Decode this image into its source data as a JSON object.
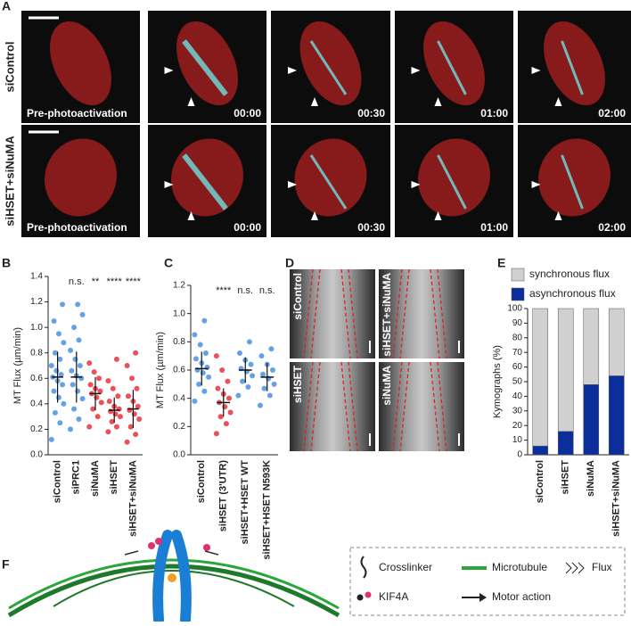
{
  "panel_A": {
    "letter": "A",
    "rows": [
      {
        "label": "siControl",
        "frames": [
          "Pre-photoactivation",
          "00:00",
          "00:30",
          "01:00",
          "02:00"
        ]
      },
      {
        "label": "siHSET+siNuMA",
        "frames": [
          "Pre-photoactivation",
          "00:00",
          "00:30",
          "01:00",
          "02:00"
        ]
      }
    ]
  },
  "chart_data": [
    {
      "type": "strip",
      "letter": "B",
      "ylabel": "MT Flux (µm/min)",
      "categories": [
        "siControl",
        "siPRC1",
        "siNuMA",
        "siHSET",
        "siHSET+siNuMA"
      ],
      "colors": [
        "#4a90e2",
        "#4a90e2",
        "#e8323c",
        "#e8323c",
        "#e8323c"
      ],
      "annotations": [
        null,
        "n.s.",
        "**",
        "****",
        "****"
      ],
      "points": [
        [
          0.12,
          0.25,
          0.33,
          0.4,
          0.45,
          0.5,
          0.55,
          0.58,
          0.61,
          0.63,
          0.66,
          0.7,
          0.75,
          0.8,
          0.88,
          0.95,
          1.05,
          1.18
        ],
        [
          0.2,
          0.28,
          0.36,
          0.44,
          0.5,
          0.55,
          0.6,
          0.62,
          0.66,
          0.7,
          0.75,
          0.82,
          0.9,
          1.0,
          1.1,
          1.18
        ],
        [
          0.22,
          0.3,
          0.36,
          0.41,
          0.45,
          0.48,
          0.5,
          0.52,
          0.55,
          0.6,
          0.65,
          0.72
        ],
        [
          0.18,
          0.22,
          0.26,
          0.3,
          0.32,
          0.34,
          0.36,
          0.38,
          0.42,
          0.46,
          0.52,
          0.58,
          0.75
        ],
        [
          0.1,
          0.16,
          0.22,
          0.28,
          0.32,
          0.35,
          0.38,
          0.42,
          0.46,
          0.52,
          0.6,
          0.7,
          0.8
        ]
      ],
      "means": [
        0.61,
        0.61,
        0.48,
        0.35,
        0.36
      ],
      "sds": [
        0.2,
        0.2,
        0.13,
        0.1,
        0.15
      ],
      "ylim": [
        0,
        1.4
      ],
      "yticks": [
        {
          "value": 0,
          "label": "0.0"
        },
        0.2,
        0.4,
        0.6,
        0.8,
        {
          "value": 1,
          "label": "1.0"
        },
        1.2,
        1.4
      ]
    },
    {
      "type": "strip",
      "letter": "C",
      "ylabel": "MT Flux (µm/min)",
      "categories": [
        "siControl",
        "siHSET (3'UTR)",
        "siHSET+HSET WT",
        "siHSET+HSET N593K"
      ],
      "colors": [
        "#4a90e2",
        "#e8323c",
        "#4a90e2",
        "#4a90e2"
      ],
      "annotations": [
        null,
        "****",
        "n.s.",
        "n.s."
      ],
      "points": [
        [
          0.38,
          0.45,
          0.5,
          0.55,
          0.58,
          0.6,
          0.62,
          0.65,
          0.68,
          0.72,
          0.78,
          0.85,
          0.95
        ],
        [
          0.15,
          0.22,
          0.27,
          0.3,
          0.34,
          0.37,
          0.4,
          0.43,
          0.47,
          0.52,
          0.6,
          0.7
        ],
        [
          0.42,
          0.48,
          0.52,
          0.56,
          0.59,
          0.61,
          0.64,
          0.67,
          0.72,
          0.8
        ],
        [
          0.35,
          0.42,
          0.47,
          0.5,
          0.54,
          0.57,
          0.6,
          0.64,
          0.7,
          0.75
        ]
      ],
      "means": [
        0.61,
        0.37,
        0.6,
        0.55
      ],
      "sds": [
        0.12,
        0.1,
        0.09,
        0.1
      ],
      "ylim": [
        0,
        1.2
      ],
      "yticks": [
        {
          "value": 0,
          "label": "0.0"
        },
        0.2,
        0.4,
        0.6,
        0.8,
        {
          "value": 1,
          "label": "1.0"
        },
        1.2
      ]
    },
    {
      "type": "bar",
      "letter": "E",
      "ylabel": "Kymographs (%)",
      "stacked": true,
      "categories": [
        "siControl",
        "siHSET",
        "siNuMA",
        "siHSET+siNuMA"
      ],
      "series": [
        {
          "name": "synchronous flux",
          "color": "#d0d0d0",
          "values": [
            94,
            84,
            52,
            46
          ]
        },
        {
          "name": "asynchronous flux",
          "color": "#0b2e9c",
          "values": [
            6,
            16,
            48,
            54
          ]
        }
      ],
      "ylim": [
        0,
        100
      ],
      "yticks": [
        0,
        10,
        20,
        30,
        40,
        50,
        60,
        70,
        80,
        90,
        100
      ]
    }
  ],
  "panel_D": {
    "letter": "D",
    "labels": [
      "siControl",
      "siHSET+siNuMA",
      "siHSET",
      "siNuMA"
    ]
  },
  "panel_F": {
    "letter": "F",
    "legend": [
      "Crosslinker",
      "Microtubule",
      "Flux",
      "KIF4A",
      "Motor action"
    ]
  }
}
